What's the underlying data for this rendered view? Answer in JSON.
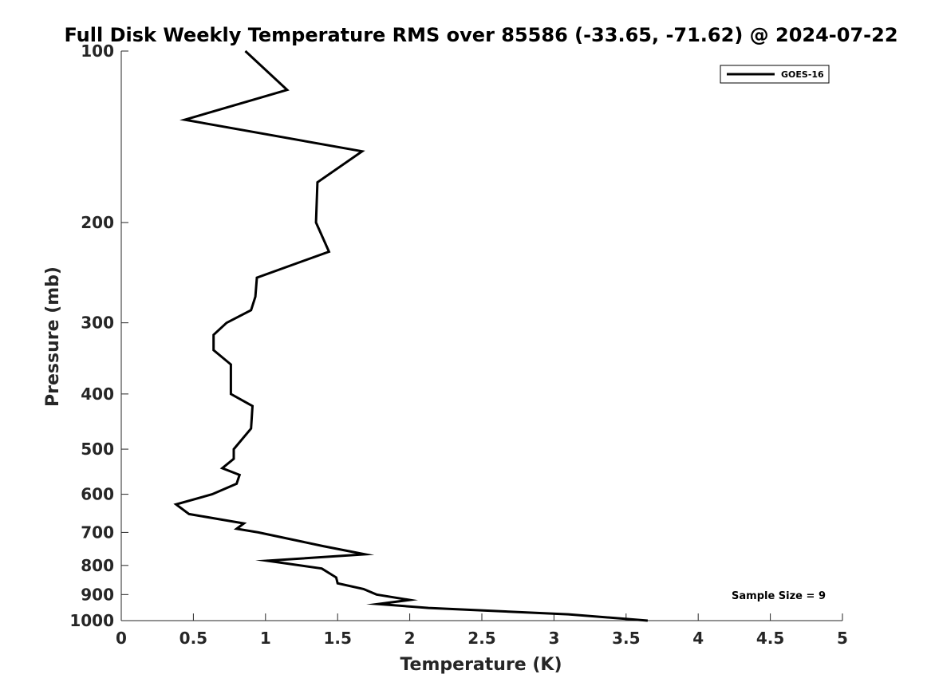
{
  "chart_data": {
    "type": "line",
    "title": "Full Disk Weekly Temperature RMS over 85586 (-33.65, -71.62) @ 2024-07-22",
    "xlabel": "Temperature (K)",
    "ylabel": "Pressure (mb)",
    "xlim": [
      0,
      5
    ],
    "ylim": [
      100,
      1000
    ],
    "y_scale": "log",
    "y_reversed": true,
    "x_ticks": [
      "0",
      "0.5",
      "1",
      "1.5",
      "2",
      "2.5",
      "3",
      "3.5",
      "4",
      "4.5",
      "5"
    ],
    "x_tick_values": [
      0,
      0.5,
      1,
      1.5,
      2,
      2.5,
      3,
      3.5,
      4,
      4.5,
      5
    ],
    "y_ticks": [
      "100",
      "200",
      "300",
      "400",
      "500",
      "600",
      "700",
      "800",
      "900",
      "1000"
    ],
    "y_tick_values": [
      100,
      200,
      300,
      400,
      500,
      600,
      700,
      800,
      900,
      1000
    ],
    "grid": false,
    "legend_position": "top-right",
    "annotation": "Sample Size = 9",
    "series": [
      {
        "name": "GOES-16",
        "color": "#000000",
        "points": [
          [
            0.86,
            100
          ],
          [
            1.15,
            117
          ],
          [
            0.44,
            132
          ],
          [
            1.67,
            150
          ],
          [
            1.36,
            170
          ],
          [
            1.35,
            200
          ],
          [
            1.44,
            225
          ],
          [
            0.94,
            250
          ],
          [
            0.93,
            270
          ],
          [
            0.9,
            285
          ],
          [
            0.73,
            300
          ],
          [
            0.64,
            315
          ],
          [
            0.64,
            335
          ],
          [
            0.76,
            355
          ],
          [
            0.76,
            400
          ],
          [
            0.91,
            420
          ],
          [
            0.9,
            460
          ],
          [
            0.78,
            500
          ],
          [
            0.78,
            520
          ],
          [
            0.7,
            540
          ],
          [
            0.82,
            555
          ],
          [
            0.8,
            575
          ],
          [
            0.63,
            600
          ],
          [
            0.38,
            625
          ],
          [
            0.47,
            650
          ],
          [
            0.85,
            675
          ],
          [
            0.8,
            690
          ],
          [
            0.95,
            700
          ],
          [
            1.4,
            740
          ],
          [
            1.69,
            765
          ],
          [
            1.01,
            785
          ],
          [
            1.39,
            810
          ],
          [
            1.49,
            840
          ],
          [
            1.5,
            860
          ],
          [
            1.68,
            880
          ],
          [
            1.77,
            900
          ],
          [
            2.0,
            920
          ],
          [
            1.78,
            935
          ],
          [
            2.13,
            950
          ],
          [
            3.1,
            975
          ],
          [
            3.65,
            1000
          ]
        ]
      }
    ]
  }
}
